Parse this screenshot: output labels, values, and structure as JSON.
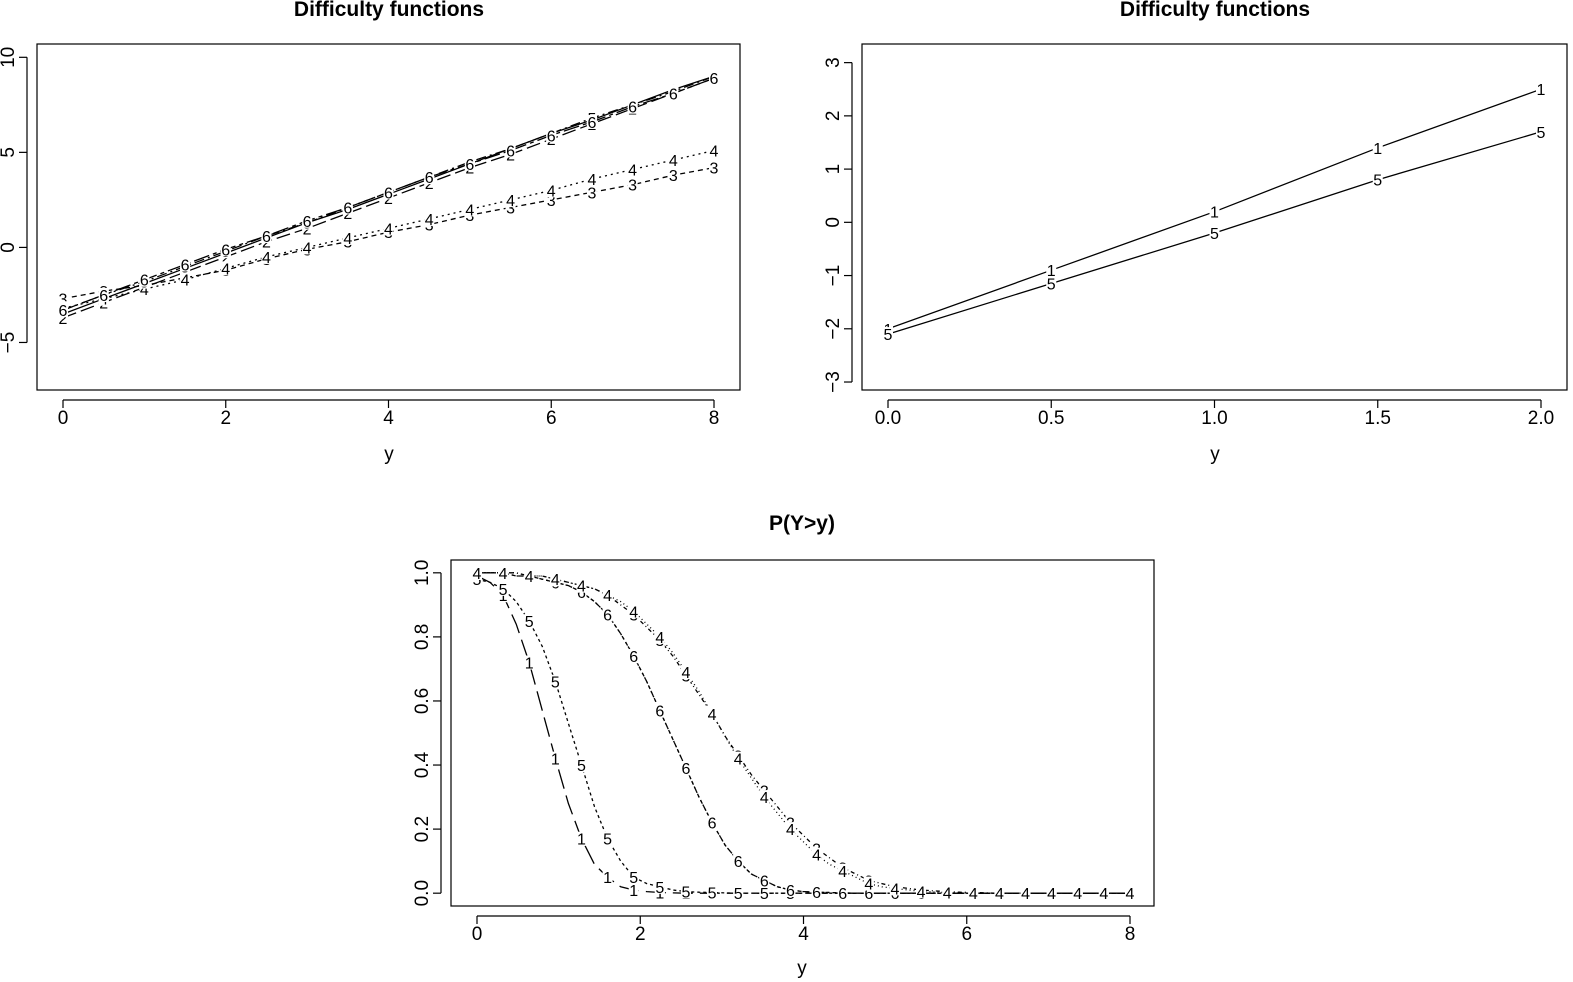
{
  "chart_data": [
    {
      "type": "line",
      "title": "Difficulty functions",
      "xlabel": "y",
      "ylabel": "",
      "xlim": [
        0,
        8
      ],
      "ylim": [
        -7.5,
        10.7
      ],
      "xticks": [
        0,
        2,
        4,
        6,
        8
      ],
      "yticks": [
        -5,
        0,
        5,
        10
      ],
      "x": [
        0,
        0.5,
        1,
        1.5,
        2,
        2.5,
        3,
        3.5,
        4,
        4.5,
        5,
        5.5,
        6,
        6.5,
        7,
        7.5,
        8
      ],
      "series": [
        {
          "label": "1",
          "values": [
            -3.5,
            -2.7,
            -1.9,
            -1.1,
            -0.3,
            0.5,
            1.3,
            2.0,
            2.8,
            3.6,
            4.4,
            5.2,
            6.0,
            6.7,
            7.5,
            8.3,
            9.0
          ]
        },
        {
          "label": "2",
          "values": [
            -3.7,
            -2.9,
            -2.1,
            -1.3,
            -0.5,
            0.3,
            1.0,
            1.8,
            2.6,
            3.4,
            4.2,
            4.9,
            5.7,
            6.5,
            7.3,
            8.1,
            8.9
          ]
        },
        {
          "label": "3",
          "values": [
            -2.7,
            -2.3,
            -2.0,
            -1.6,
            -1.2,
            -0.6,
            -0.1,
            0.3,
            0.8,
            1.2,
            1.7,
            2.1,
            2.5,
            2.9,
            3.3,
            3.8,
            4.2
          ]
        },
        {
          "label": "4",
          "values": [
            -3.2,
            -2.7,
            -2.2,
            -1.7,
            -1.1,
            -0.5,
            0.0,
            0.5,
            1.0,
            1.5,
            2.0,
            2.5,
            3.0,
            3.6,
            4.1,
            4.6,
            5.1
          ]
        },
        {
          "label": "5",
          "values": [
            -3.3,
            -2.5,
            -1.8,
            -1.0,
            -0.2,
            0.6,
            1.3,
            2.1,
            2.9,
            3.7,
            4.5,
            5.2,
            6.0,
            6.8,
            7.5,
            8.2,
            9.0
          ]
        },
        {
          "label": "6",
          "values": [
            -3.3,
            -2.5,
            -1.7,
            -0.9,
            -0.1,
            0.6,
            1.4,
            2.1,
            2.9,
            3.7,
            4.4,
            5.1,
            5.9,
            6.6,
            7.4,
            8.1,
            8.9
          ]
        }
      ]
    },
    {
      "type": "line",
      "title": "Difficulty functions",
      "xlabel": "y",
      "ylabel": "",
      "xlim": [
        0,
        2
      ],
      "ylim": [
        -3.15,
        3.35
      ],
      "xticks": [
        "0.0",
        "0.5",
        "1.0",
        "1.5",
        "2.0"
      ],
      "yticks": [
        -3,
        -2,
        -1,
        0,
        1,
        2,
        3
      ],
      "x": [
        0,
        0.5,
        1,
        1.5,
        2
      ],
      "series": [
        {
          "label": "1",
          "values": [
            -2.0,
            -0.9,
            0.2,
            1.4,
            2.5
          ]
        },
        {
          "label": "5",
          "values": [
            -2.1,
            -1.15,
            -0.2,
            0.8,
            1.7
          ]
        }
      ]
    },
    {
      "type": "line",
      "title": "P(Y>y)",
      "xlabel": "y",
      "ylabel": "",
      "xlim": [
        0,
        8
      ],
      "ylim": [
        -0.04,
        1.04
      ],
      "xticks": [
        0,
        2,
        4,
        6,
        8
      ],
      "yticks": [
        "0.0",
        "0.2",
        "0.4",
        "0.6",
        "0.8",
        "1.0"
      ],
      "x": [
        0,
        0.16,
        0.32,
        0.48,
        0.64,
        0.8,
        0.96,
        1.12,
        1.28,
        1.44,
        1.6,
        1.76,
        1.92,
        2.08,
        2.24,
        2.4,
        2.56,
        2.72,
        2.88,
        3.04,
        3.2,
        3.36,
        3.52,
        3.68,
        3.84,
        4.0,
        4.16,
        4.32,
        4.48,
        4.64,
        4.8,
        4.96,
        5.12,
        5.28,
        5.44,
        5.6,
        5.76,
        5.92,
        6.08,
        6.24,
        6.4,
        6.56,
        6.72,
        6.88,
        7.04,
        7.2,
        7.36,
        7.52,
        7.68,
        7.84,
        8.0
      ],
      "series": [
        {
          "label": "1",
          "values": [
            0.99,
            0.97,
            0.93,
            0.84,
            0.72,
            0.57,
            0.42,
            0.28,
            0.17,
            0.09,
            0.05,
            0.02,
            0.01,
            0.005,
            0.002,
            0.001,
            0,
            0,
            0,
            0,
            0,
            0,
            0,
            0,
            0,
            0,
            0,
            0,
            0,
            0,
            0,
            0,
            0,
            0,
            0,
            0,
            0,
            0,
            0,
            0,
            0,
            0,
            0,
            0,
            0,
            0,
            0,
            0,
            0,
            0,
            0
          ]
        },
        {
          "label": "5",
          "values": [
            0.98,
            0.97,
            0.95,
            0.91,
            0.85,
            0.77,
            0.66,
            0.53,
            0.4,
            0.27,
            0.17,
            0.1,
            0.05,
            0.03,
            0.02,
            0.01,
            0.005,
            0.003,
            0.002,
            0.001,
            0,
            0,
            0,
            0,
            0,
            0,
            0,
            0,
            0,
            0,
            0,
            0,
            0,
            0,
            0,
            0,
            0,
            0,
            0,
            0,
            0,
            0,
            0,
            0,
            0,
            0,
            0,
            0,
            0,
            0,
            0
          ]
        },
        {
          "label": "2",
          "values": [
            1.0,
            1.0,
            1.0,
            0.99,
            0.99,
            0.98,
            0.97,
            0.96,
            0.94,
            0.91,
            0.87,
            0.81,
            0.74,
            0.66,
            0.57,
            0.48,
            0.39,
            0.3,
            0.22,
            0.15,
            0.1,
            0.06,
            0.04,
            0.02,
            0.01,
            0.005,
            0.003,
            0.002,
            0.001,
            0,
            0,
            0,
            0,
            0,
            0,
            0,
            0,
            0,
            0,
            0,
            0,
            0,
            0,
            0,
            0,
            0,
            0,
            0,
            0,
            0,
            0
          ]
        },
        {
          "label": "6",
          "values": [
            1.0,
            1.0,
            1.0,
            0.99,
            0.99,
            0.98,
            0.97,
            0.96,
            0.94,
            0.91,
            0.87,
            0.81,
            0.74,
            0.66,
            0.57,
            0.48,
            0.39,
            0.3,
            0.22,
            0.15,
            0.1,
            0.06,
            0.04,
            0.02,
            0.01,
            0.005,
            0.003,
            0.002,
            0.001,
            0,
            0,
            0,
            0,
            0,
            0,
            0,
            0,
            0,
            0,
            0,
            0,
            0,
            0,
            0,
            0,
            0,
            0,
            0,
            0,
            0,
            0
          ]
        },
        {
          "label": "3",
          "values": [
            1.0,
            1.0,
            1.0,
            1.0,
            0.99,
            0.99,
            0.98,
            0.97,
            0.96,
            0.95,
            0.93,
            0.9,
            0.87,
            0.83,
            0.79,
            0.74,
            0.68,
            0.62,
            0.56,
            0.49,
            0.43,
            0.37,
            0.32,
            0.27,
            0.22,
            0.18,
            0.14,
            0.11,
            0.08,
            0.06,
            0.04,
            0.03,
            0.02,
            0.015,
            0.01,
            0.007,
            0.005,
            0.003,
            0.002,
            0.001,
            0,
            0,
            0,
            0,
            0,
            0,
            0,
            0,
            0,
            0,
            0
          ]
        },
        {
          "label": "4",
          "values": [
            1.0,
            1.0,
            1.0,
            1.0,
            0.99,
            0.99,
            0.98,
            0.97,
            0.96,
            0.95,
            0.93,
            0.91,
            0.88,
            0.84,
            0.8,
            0.75,
            0.69,
            0.63,
            0.56,
            0.49,
            0.42,
            0.36,
            0.3,
            0.25,
            0.2,
            0.16,
            0.12,
            0.09,
            0.07,
            0.05,
            0.03,
            0.02,
            0.015,
            0.01,
            0.006,
            0.004,
            0.002,
            0.001,
            0,
            0,
            0,
            0,
            0,
            0,
            0,
            0,
            0,
            0,
            0,
            0,
            0
          ]
        }
      ]
    }
  ]
}
